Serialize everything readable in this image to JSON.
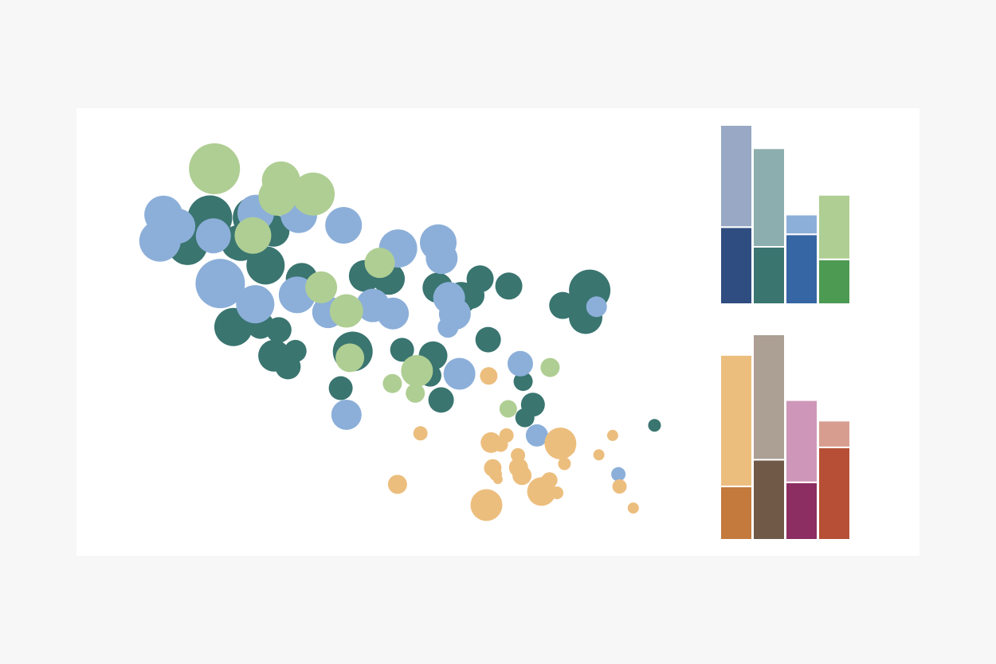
{
  "colors": {
    "page_background": "#f7f7f7",
    "panel_background": "#ffffff",
    "bar_separator": "#ffffff"
  },
  "chart_data": [
    {
      "type": "scatter",
      "title": "",
      "xlabel": "",
      "ylabel": "",
      "xlim": [
        0,
        100
      ],
      "ylim": [
        0,
        100
      ],
      "grid": false,
      "axes_visible": false,
      "size_legend": "none",
      "series": [
        {
          "color": "#3a7570",
          "points": [
            {
              "x": 17.7,
              "y": 76.9,
              "size": 28
            },
            {
              "x": 25.3,
              "y": 76.9,
              "size": 26
            },
            {
              "x": 23.1,
              "y": 71.0,
              "size": 23
            },
            {
              "x": 22.7,
              "y": 71.0,
              "size": 22
            },
            {
              "x": 13.8,
              "y": 70.4,
              "size": 25
            },
            {
              "x": 27.4,
              "y": 65.6,
              "size": 24
            },
            {
              "x": 33.7,
              "y": 62.4,
              "size": 20
            },
            {
              "x": 44.7,
              "y": 63.1,
              "size": 20
            },
            {
              "x": 48.9,
              "y": 62.4,
              "size": 20
            },
            {
              "x": 28.8,
              "y": 73.8,
              "size": 20
            },
            {
              "x": 57.4,
              "y": 60.3,
              "size": 19
            },
            {
              "x": 61.5,
              "y": 57.9,
              "size": 20
            },
            {
              "x": 64.8,
              "y": 62.4,
              "size": 17
            },
            {
              "x": 69.8,
              "y": 60.7,
              "size": 17
            },
            {
              "x": 83.9,
              "y": 59.7,
              "size": 26
            },
            {
              "x": 79.2,
              "y": 56.1,
              "size": 17
            },
            {
              "x": 83.2,
              "y": 53.3,
              "size": 21
            },
            {
              "x": 21.8,
              "y": 51.0,
              "size": 24
            },
            {
              "x": 26.5,
              "y": 51.4,
              "size": 17
            },
            {
              "x": 29.7,
              "y": 50.3,
              "size": 16
            },
            {
              "x": 32.6,
              "y": 45.3,
              "size": 14
            },
            {
              "x": 28.9,
              "y": 44.2,
              "size": 20
            },
            {
              "x": 31.3,
              "y": 41.6,
              "size": 16
            },
            {
              "x": 42.6,
              "y": 45.2,
              "size": 25
            },
            {
              "x": 51.2,
              "y": 45.6,
              "size": 15
            },
            {
              "x": 56.6,
              "y": 44.2,
              "size": 18
            },
            {
              "x": 66.2,
              "y": 48.0,
              "size": 16
            },
            {
              "x": 56.1,
              "y": 39.5,
              "size": 14
            },
            {
              "x": 72.3,
              "y": 38.1,
              "size": 12
            },
            {
              "x": 40.5,
              "y": 36.5,
              "size": 15
            },
            {
              "x": 58.0,
              "y": 33.7,
              "size": 16
            },
            {
              "x": 74.0,
              "y": 32.6,
              "size": 15
            },
            {
              "x": 72.6,
              "y": 29.5,
              "size": 12
            },
            {
              "x": 95.2,
              "y": 27.7,
              "size": 8
            },
            {
              "x": 63.2,
              "y": 58.5,
              "size": 17
            },
            {
              "x": 57.5,
              "y": 60.0,
              "size": 16
            }
          ]
        },
        {
          "color": "#8cafd9",
          "points": [
            {
              "x": 9.6,
              "y": 77.6,
              "size": 24
            },
            {
              "x": 12.1,
              "y": 74.9,
              "size": 22
            },
            {
              "x": 9.0,
              "y": 71.4,
              "size": 26
            },
            {
              "x": 18.3,
              "y": 72.6,
              "size": 22
            },
            {
              "x": 25.7,
              "y": 78.0,
              "size": 23
            },
            {
              "x": 33.2,
              "y": 77.6,
              "size": 23
            },
            {
              "x": 41.0,
              "y": 75.1,
              "size": 23
            },
            {
              "x": 19.5,
              "y": 61.3,
              "size": 31
            },
            {
              "x": 25.6,
              "y": 56.4,
              "size": 24
            },
            {
              "x": 32.9,
              "y": 58.6,
              "size": 23
            },
            {
              "x": 38.3,
              "y": 54.5,
              "size": 20
            },
            {
              "x": 46.1,
              "y": 56.1,
              "size": 21
            },
            {
              "x": 49.6,
              "y": 54.2,
              "size": 20
            },
            {
              "x": 50.5,
              "y": 69.6,
              "size": 24
            },
            {
              "x": 57.5,
              "y": 71.0,
              "size": 23
            },
            {
              "x": 58.1,
              "y": 67.3,
              "size": 20
            },
            {
              "x": 59.4,
              "y": 57.9,
              "size": 20
            },
            {
              "x": 60.4,
              "y": 54.1,
              "size": 20
            },
            {
              "x": 59.2,
              "y": 50.9,
              "size": 13
            },
            {
              "x": 53.6,
              "y": 41.2,
              "size": 14
            },
            {
              "x": 61.2,
              "y": 39.9,
              "size": 20
            },
            {
              "x": 41.5,
              "y": 30.2,
              "size": 19
            },
            {
              "x": 71.8,
              "y": 42.3,
              "size": 16
            },
            {
              "x": 85.1,
              "y": 55.8,
              "size": 13
            },
            {
              "x": 74.7,
              "y": 25.3,
              "size": 14
            },
            {
              "x": 88.9,
              "y": 16.1,
              "size": 9
            }
          ]
        },
        {
          "color": "#afce93",
          "points": [
            {
              "x": 18.5,
              "y": 88.5,
              "size": 32
            },
            {
              "x": 30.1,
              "y": 85.7,
              "size": 24
            },
            {
              "x": 29.5,
              "y": 81.9,
              "size": 24
            },
            {
              "x": 35.7,
              "y": 82.5,
              "size": 27
            },
            {
              "x": 25.2,
              "y": 72.7,
              "size": 23
            },
            {
              "x": 47.3,
              "y": 66.2,
              "size": 19
            },
            {
              "x": 37.1,
              "y": 60.4,
              "size": 20
            },
            {
              "x": 41.5,
              "y": 54.8,
              "size": 21
            },
            {
              "x": 42.1,
              "y": 43.7,
              "size": 18
            },
            {
              "x": 49.5,
              "y": 37.6,
              "size": 12
            },
            {
              "x": 53.8,
              "y": 40.6,
              "size": 20
            },
            {
              "x": 53.5,
              "y": 35.3,
              "size": 12
            },
            {
              "x": 77.0,
              "y": 41.4,
              "size": 12
            },
            {
              "x": 69.7,
              "y": 31.6,
              "size": 11
            }
          ]
        },
        {
          "color": "#ecbe7e",
          "points": [
            {
              "x": 66.3,
              "y": 39.4,
              "size": 11
            },
            {
              "x": 54.4,
              "y": 25.8,
              "size": 9
            },
            {
              "x": 66.7,
              "y": 23.6,
              "size": 13
            },
            {
              "x": 69.4,
              "y": 25.3,
              "size": 9
            },
            {
              "x": 71.4,
              "y": 20.6,
              "size": 9
            },
            {
              "x": 68.4,
              "y": 23.1,
              "size": 9
            },
            {
              "x": 67.0,
              "y": 17.6,
              "size": 11
            },
            {
              "x": 71.5,
              "y": 17.7,
              "size": 12
            },
            {
              "x": 72.1,
              "y": 15.8,
              "size": 12
            },
            {
              "x": 67.5,
              "y": 16.1,
              "size": 8
            },
            {
              "x": 67.9,
              "y": 14.9,
              "size": 6
            },
            {
              "x": 78.8,
              "y": 23.4,
              "size": 20
            },
            {
              "x": 80.4,
              "y": 22.1,
              "size": 7
            },
            {
              "x": 79.5,
              "y": 18.6,
              "size": 8
            },
            {
              "x": 76.3,
              "y": 14.4,
              "size": 8
            },
            {
              "x": 75.5,
              "y": 12.0,
              "size": 18
            },
            {
              "x": 78.2,
              "y": 11.7,
              "size": 8
            },
            {
              "x": 87.9,
              "y": 25.3,
              "size": 7
            },
            {
              "x": 85.5,
              "y": 20.7,
              "size": 7
            },
            {
              "x": 89.1,
              "y": 13.2,
              "size": 9
            },
            {
              "x": 91.5,
              "y": 8.1,
              "size": 7
            },
            {
              "x": 50.4,
              "y": 13.7,
              "size": 12
            },
            {
              "x": 65.9,
              "y": 8.8,
              "size": 20
            },
            {
              "x": 76.9,
              "y": 14.7,
              "size": 10
            }
          ]
        }
      ]
    },
    {
      "type": "bar",
      "stacked": true,
      "title": "",
      "xlabel": "",
      "ylabel": "",
      "axes_visible": false,
      "ylim": [
        0,
        100
      ],
      "categories": [
        "",
        "",
        "",
        ""
      ],
      "series": [
        {
          "colors": [
            "#2f4d80",
            "#3a7570",
            "#3766a4",
            "#4d9a52"
          ],
          "values": [
            43,
            32,
            39,
            25
          ]
        },
        {
          "colors": [
            "#98a8c5",
            "#8caeae",
            "#8cafd9",
            "#afce93"
          ],
          "values": [
            57,
            55,
            11,
            36
          ]
        }
      ]
    },
    {
      "type": "bar",
      "stacked": true,
      "title": "",
      "xlabel": "",
      "ylabel": "",
      "axes_visible": false,
      "ylim": [
        0,
        100
      ],
      "categories": [
        "",
        "",
        "",
        ""
      ],
      "series": [
        {
          "colors": [
            "#c47a3c",
            "#705a47",
            "#8c2e62",
            "#b64f36"
          ],
          "values": [
            26,
            39,
            28,
            45
          ]
        },
        {
          "colors": [
            "#ecbe7e",
            "#ac9f93",
            "#ce97b9",
            "#d79e8f"
          ],
          "values": [
            64,
            61,
            40,
            13
          ]
        }
      ]
    }
  ]
}
